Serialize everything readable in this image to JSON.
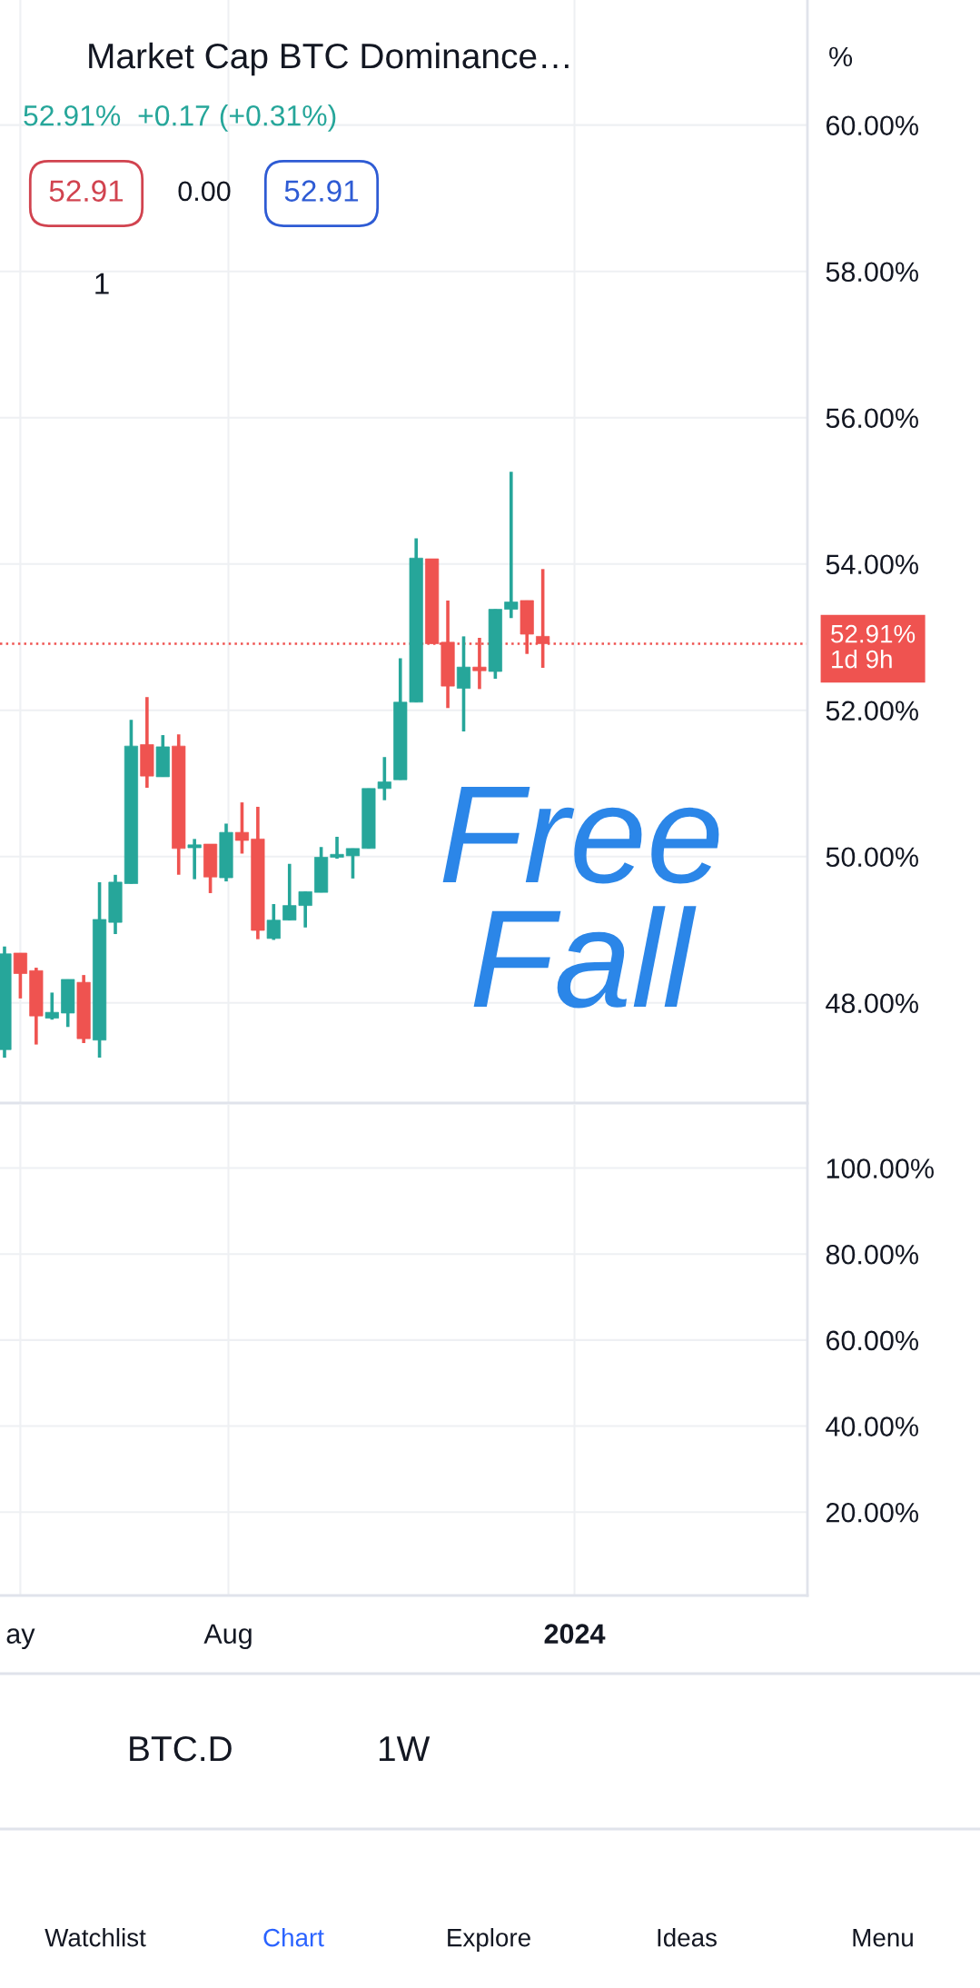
{
  "chart_data": [
    {
      "type": "candlestick",
      "title": "Market Cap BTC Dominance…",
      "subtitle": "52.91%  +0.17 (+0.31%)",
      "x": [
        "2023-04-24",
        "2023-05-01",
        "2023-05-08",
        "2023-05-15",
        "2023-05-22",
        "2023-05-29",
        "2023-06-05",
        "2023-06-12",
        "2023-06-19",
        "2023-06-26",
        "2023-07-03",
        "2023-07-10",
        "2023-07-17",
        "2023-07-24",
        "2023-07-31",
        "2023-08-07",
        "2023-08-14",
        "2023-08-21",
        "2023-08-28",
        "2023-09-04",
        "2023-09-11",
        "2023-09-18",
        "2023-09-25",
        "2023-10-02",
        "2023-10-09",
        "2023-10-16",
        "2023-10-23",
        "2023-10-30",
        "2023-11-06",
        "2023-11-13",
        "2023-11-20",
        "2023-11-27",
        "2023-12-04",
        "2023-12-11",
        "2023-12-18"
      ],
      "ohlc": [
        [
          47.36,
          48.77,
          47.25,
          48.67
        ],
        [
          48.68,
          48.68,
          48.06,
          48.4
        ],
        [
          48.44,
          48.48,
          47.43,
          47.82
        ],
        [
          47.79,
          48.14,
          47.77,
          47.87
        ],
        [
          47.86,
          48.32,
          47.67,
          48.32
        ],
        [
          48.28,
          48.38,
          47.45,
          47.51
        ],
        [
          47.49,
          49.65,
          47.25,
          49.14
        ],
        [
          49.1,
          49.75,
          48.94,
          49.65
        ],
        [
          49.63,
          51.87,
          49.63,
          51.51
        ],
        [
          51.53,
          52.18,
          50.94,
          51.1
        ],
        [
          51.09,
          51.66,
          51.09,
          51.5
        ],
        [
          51.51,
          51.67,
          49.75,
          50.11
        ],
        [
          50.12,
          50.24,
          49.69,
          50.16
        ],
        [
          50.17,
          50.17,
          49.5,
          49.72
        ],
        [
          49.71,
          50.45,
          49.66,
          50.33
        ],
        [
          50.33,
          50.74,
          50.04,
          50.22
        ],
        [
          50.24,
          50.68,
          48.87,
          48.99
        ],
        [
          48.88,
          49.35,
          48.86,
          49.13
        ],
        [
          49.13,
          49.9,
          49.13,
          49.33
        ],
        [
          49.33,
          49.52,
          49.03,
          49.52
        ],
        [
          49.51,
          50.13,
          49.51,
          49.99
        ],
        [
          49.99,
          50.27,
          49.97,
          50.03
        ],
        [
          50.01,
          50.11,
          49.7,
          50.11
        ],
        [
          50.11,
          50.93,
          50.11,
          50.93
        ],
        [
          50.93,
          51.36,
          50.77,
          51.02
        ],
        [
          51.05,
          52.71,
          51.05,
          52.11
        ],
        [
          52.11,
          54.35,
          52.11,
          54.08
        ],
        [
          54.07,
          54.07,
          52.91,
          52.91
        ],
        [
          52.93,
          53.5,
          52.03,
          52.33
        ],
        [
          52.3,
          53.01,
          51.71,
          52.59
        ],
        [
          52.59,
          52.99,
          52.29,
          52.54
        ],
        [
          52.53,
          53.38,
          52.43,
          53.38
        ],
        [
          53.38,
          55.26,
          53.26,
          53.48
        ],
        [
          53.5,
          53.5,
          52.77,
          53.04
        ],
        [
          53.01,
          53.93,
          52.58,
          52.91
        ]
      ],
      "colors": [
        "#26a69a",
        "#ef5350",
        "#ef5350",
        "#26a69a",
        "#26a69a",
        "#ef5350",
        "#26a69a",
        "#26a69a",
        "#26a69a",
        "#ef5350",
        "#26a69a",
        "#ef5350",
        "#26a69a",
        "#ef5350",
        "#26a69a",
        "#ef5350",
        "#ef5350",
        "#26a69a",
        "#26a69a",
        "#26a69a",
        "#26a69a",
        "#26a69a",
        "#26a69a",
        "#26a69a",
        "#26a69a",
        "#26a69a",
        "#26a69a",
        "#ef5350",
        "#ef5350",
        "#26a69a",
        "#ef5350",
        "#26a69a",
        "#26a69a",
        "#ef5350",
        "#ef5350"
      ],
      "xlim": [
        "2023-04-22",
        "2024-04-13"
      ],
      "xticks": [
        {
          "value": "2023-05-01",
          "label": null
        },
        {
          "value": "2023-08-01",
          "label": null
        },
        {
          "value": "2024-01-01",
          "label": null
        }
      ],
      "ylim": [
        46.63,
        61.71
      ],
      "yticks": [
        {
          "value": 48,
          "label": "48.00%"
        },
        {
          "value": 50,
          "label": "50.00%"
        },
        {
          "value": 52,
          "label": "52.00%"
        },
        {
          "value": 54,
          "label": "54.00%"
        },
        {
          "value": 56,
          "label": "56.00%"
        },
        {
          "value": 58,
          "label": "58.00%"
        },
        {
          "value": 60,
          "label": "60.00%"
        }
      ],
      "tick_labels": "y",
      "grid": true,
      "ref_lines": [
        {
          "axis": "y",
          "value": 52.91,
          "label": "52.91%\n1d 9h",
          "color": "#ef5350",
          "line_style": "dotted"
        }
      ],
      "annotations": [
        "52.91",
        "0.00",
        "52.91",
        "1",
        "%",
        "Free\nFall",
        "BTC.D",
        "1W",
        "Watchlist",
        "Chart",
        "Explore",
        "Ideas",
        "Menu"
      ]
    },
    {
      "type": "line",
      "xlim": [
        "2023-04-22",
        "2024-04-13"
      ],
      "xticks": [
        {
          "value": "2023-05-01",
          "label": "ay"
        },
        {
          "value": "2023-08-01",
          "label": "Aug"
        },
        {
          "value": "2024-01-01",
          "label": "2024"
        }
      ],
      "ylim": [
        0.6,
        114.7
      ],
      "yticks": [
        {
          "value": 20,
          "label": "20.00%"
        },
        {
          "value": 40,
          "label": "40.00%"
        },
        {
          "value": 60,
          "label": "60.00%"
        },
        {
          "value": 80,
          "label": "80.00%"
        },
        {
          "value": 100,
          "label": "100.00%"
        }
      ],
      "grid": true
    }
  ]
}
